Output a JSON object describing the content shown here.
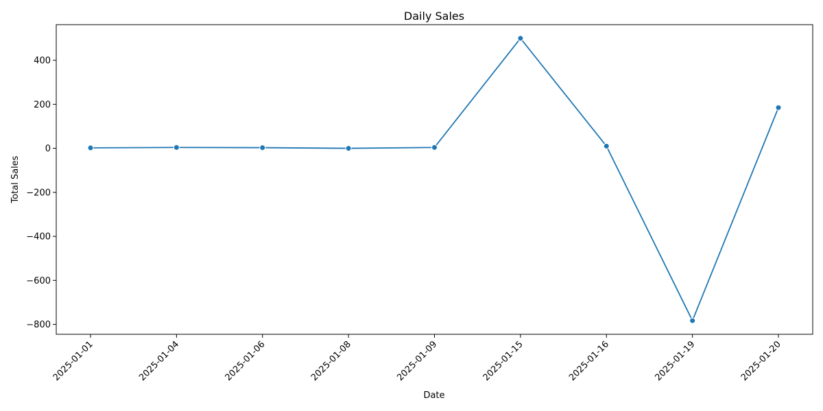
{
  "chart_data": {
    "type": "line",
    "title": "Daily Sales",
    "xlabel": "Date",
    "ylabel": "Total Sales",
    "categories": [
      "2025-01-01",
      "2025-01-04",
      "2025-01-06",
      "2025-01-08",
      "2025-01-09",
      "2025-01-15",
      "2025-01-16",
      "2025-01-19",
      "2025-01-20"
    ],
    "series": [
      {
        "values": [
          2,
          4,
          3,
          0,
          4,
          500,
          10,
          -783,
          185
        ],
        "color": "#1f77b4",
        "marker": "circle"
      }
    ],
    "yticks": [
      -800,
      -600,
      -400,
      -200,
      0,
      200,
      400
    ],
    "ytick_labels": [
      "−800",
      "−600",
      "−400",
      "−200",
      "0",
      "200",
      "400"
    ],
    "ylim": [
      -845,
      562
    ],
    "grid": false,
    "legend": "none"
  }
}
